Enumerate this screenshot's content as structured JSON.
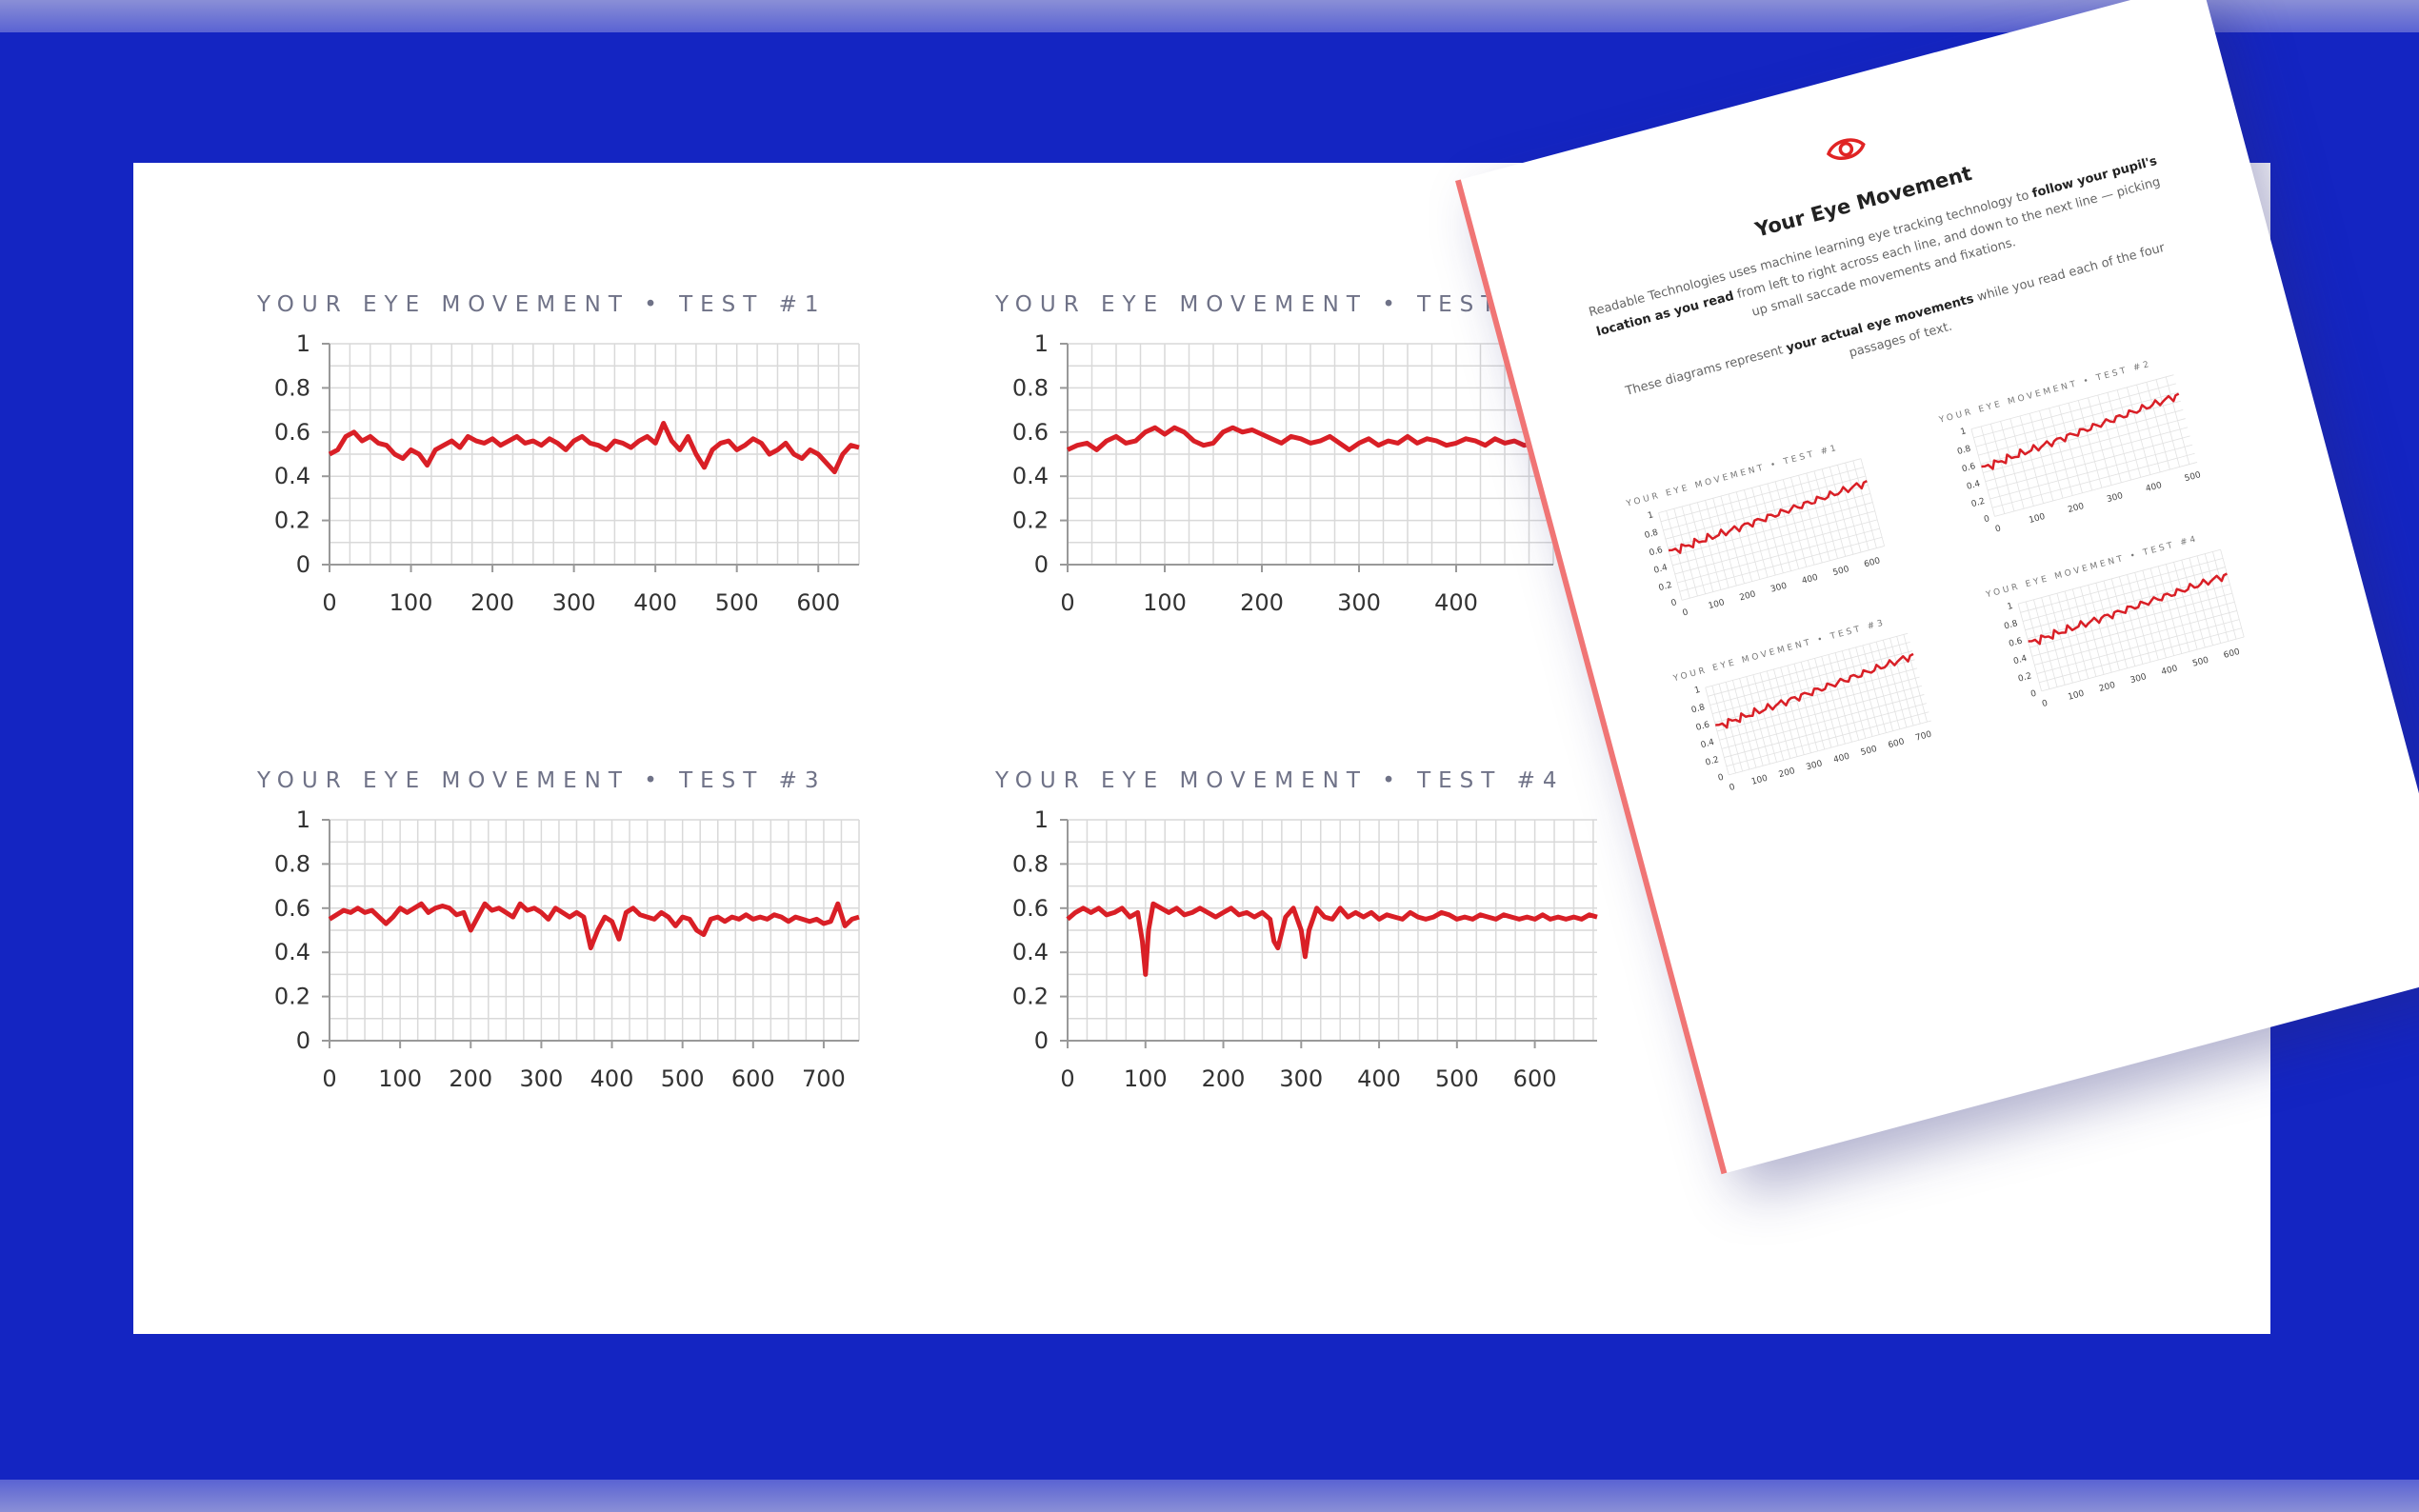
{
  "chart_data": [
    {
      "type": "line",
      "title": "YOUR EYE MOVEMENT • TEST #1",
      "xlim": [
        0,
        650
      ],
      "ylim": [
        0,
        1
      ],
      "xticks": [
        0,
        100,
        200,
        300,
        400,
        500,
        600
      ],
      "yticks": [
        0,
        0.2,
        0.4,
        0.6,
        0.8,
        1
      ],
      "yticklabels": [
        "0",
        "0.2",
        "0.4",
        "0.6",
        "0.8",
        "1"
      ],
      "grid": true,
      "series": [
        {
          "color": "#d91f26",
          "x": [
            0,
            10,
            20,
            30,
            40,
            50,
            60,
            70,
            80,
            90,
            100,
            110,
            120,
            130,
            140,
            150,
            160,
            170,
            180,
            190,
            200,
            210,
            220,
            230,
            240,
            250,
            260,
            270,
            280,
            290,
            300,
            310,
            320,
            330,
            340,
            350,
            360,
            370,
            380,
            390,
            400,
            410,
            420,
            430,
            440,
            450,
            460,
            470,
            480,
            490,
            500,
            510,
            520,
            530,
            540,
            550,
            560,
            570,
            580,
            590,
            600,
            610,
            620,
            630,
            640,
            650
          ],
          "y": [
            0.5,
            0.52,
            0.58,
            0.6,
            0.56,
            0.58,
            0.55,
            0.54,
            0.5,
            0.48,
            0.52,
            0.5,
            0.45,
            0.52,
            0.54,
            0.56,
            0.53,
            0.58,
            0.56,
            0.55,
            0.57,
            0.54,
            0.56,
            0.58,
            0.55,
            0.56,
            0.54,
            0.57,
            0.55,
            0.52,
            0.56,
            0.58,
            0.55,
            0.54,
            0.52,
            0.56,
            0.55,
            0.53,
            0.56,
            0.58,
            0.55,
            0.64,
            0.56,
            0.52,
            0.58,
            0.5,
            0.44,
            0.52,
            0.55,
            0.56,
            0.52,
            0.54,
            0.57,
            0.55,
            0.5,
            0.52,
            0.55,
            0.5,
            0.48,
            0.52,
            0.5,
            0.46,
            0.42,
            0.5,
            0.54,
            0.53
          ]
        }
      ]
    },
    {
      "type": "line",
      "title": "YOUR EYE MOVEMENT • TEST #2",
      "xlim": [
        0,
        500
      ],
      "ylim": [
        0,
        1
      ],
      "xticks": [
        0,
        100,
        200,
        300,
        400
      ],
      "yticks": [
        0,
        0.2,
        0.4,
        0.6,
        0.8,
        1
      ],
      "yticklabels": [
        "0",
        "0.2",
        "0.4",
        "0.6",
        "0.8",
        "1"
      ],
      "grid": true,
      "series": [
        {
          "color": "#d91f26",
          "x": [
            0,
            10,
            20,
            30,
            40,
            50,
            60,
            70,
            80,
            90,
            100,
            110,
            120,
            130,
            140,
            150,
            160,
            170,
            180,
            190,
            200,
            210,
            220,
            230,
            240,
            250,
            260,
            270,
            280,
            290,
            300,
            310,
            320,
            330,
            340,
            350,
            360,
            370,
            380,
            390,
            400,
            410,
            420,
            430,
            440,
            450,
            460,
            470,
            480,
            490,
            500
          ],
          "y": [
            0.52,
            0.54,
            0.55,
            0.52,
            0.56,
            0.58,
            0.55,
            0.56,
            0.6,
            0.62,
            0.59,
            0.62,
            0.6,
            0.56,
            0.54,
            0.55,
            0.6,
            0.62,
            0.6,
            0.61,
            0.59,
            0.57,
            0.55,
            0.58,
            0.57,
            0.55,
            0.56,
            0.58,
            0.55,
            0.52,
            0.55,
            0.57,
            0.54,
            0.56,
            0.55,
            0.58,
            0.55,
            0.57,
            0.56,
            0.54,
            0.55,
            0.57,
            0.56,
            0.54,
            0.57,
            0.55,
            0.56,
            0.54,
            0.55,
            0.57,
            0.56
          ]
        }
      ]
    },
    {
      "type": "line",
      "title": "YOUR EYE MOVEMENT • TEST #3",
      "xlim": [
        0,
        750
      ],
      "ylim": [
        0,
        1
      ],
      "xticks": [
        0,
        100,
        200,
        300,
        400,
        500,
        600,
        700
      ],
      "yticks": [
        0,
        0.2,
        0.4,
        0.6,
        0.8,
        1
      ],
      "yticklabels": [
        "0",
        "0.2",
        "0.4",
        "0.6",
        "0.8",
        "1"
      ],
      "grid": true,
      "series": [
        {
          "color": "#d91f26",
          "x": [
            0,
            10,
            20,
            30,
            40,
            50,
            60,
            70,
            80,
            90,
            100,
            110,
            120,
            130,
            140,
            150,
            160,
            170,
            180,
            190,
            200,
            210,
            220,
            230,
            240,
            250,
            260,
            270,
            280,
            290,
            300,
            310,
            320,
            330,
            340,
            350,
            360,
            370,
            380,
            390,
            400,
            410,
            420,
            430,
            440,
            450,
            460,
            470,
            480,
            490,
            500,
            510,
            520,
            530,
            540,
            550,
            560,
            570,
            580,
            590,
            600,
            610,
            620,
            630,
            640,
            650,
            660,
            670,
            680,
            690,
            700,
            710,
            720,
            730,
            740,
            750
          ],
          "y": [
            0.55,
            0.57,
            0.59,
            0.58,
            0.6,
            0.58,
            0.59,
            0.56,
            0.53,
            0.56,
            0.6,
            0.58,
            0.6,
            0.62,
            0.58,
            0.6,
            0.61,
            0.6,
            0.57,
            0.58,
            0.5,
            0.56,
            0.62,
            0.59,
            0.6,
            0.58,
            0.56,
            0.62,
            0.59,
            0.6,
            0.58,
            0.55,
            0.6,
            0.58,
            0.56,
            0.58,
            0.56,
            0.42,
            0.5,
            0.56,
            0.54,
            0.46,
            0.58,
            0.6,
            0.57,
            0.56,
            0.55,
            0.58,
            0.56,
            0.52,
            0.56,
            0.55,
            0.5,
            0.48,
            0.55,
            0.56,
            0.54,
            0.56,
            0.55,
            0.57,
            0.55,
            0.56,
            0.55,
            0.57,
            0.56,
            0.54,
            0.56,
            0.55,
            0.54,
            0.55,
            0.53,
            0.54,
            0.62,
            0.52,
            0.55,
            0.56
          ]
        }
      ]
    },
    {
      "type": "line",
      "title": "YOUR EYE MOVEMENT • TEST #4",
      "xlim": [
        0,
        680
      ],
      "ylim": [
        0,
        1
      ],
      "xticks": [
        0,
        100,
        200,
        300,
        400,
        500,
        600
      ],
      "yticks": [
        0,
        0.2,
        0.4,
        0.6,
        0.8,
        1
      ],
      "yticklabels": [
        "0",
        "0.2",
        "0.4",
        "0.6",
        "0.8",
        "1"
      ],
      "grid": true,
      "series": [
        {
          "color": "#d91f26",
          "x": [
            0,
            10,
            20,
            30,
            40,
            50,
            60,
            70,
            80,
            90,
            96,
            100,
            104,
            110,
            120,
            130,
            140,
            150,
            160,
            170,
            180,
            190,
            200,
            210,
            220,
            230,
            240,
            250,
            260,
            265,
            270,
            280,
            290,
            300,
            305,
            310,
            320,
            330,
            340,
            350,
            360,
            370,
            380,
            390,
            400,
            410,
            420,
            430,
            440,
            450,
            460,
            470,
            480,
            490,
            500,
            510,
            520,
            530,
            540,
            550,
            560,
            570,
            580,
            590,
            600,
            610,
            620,
            630,
            640,
            650,
            660,
            670,
            680
          ],
          "y": [
            0.55,
            0.58,
            0.6,
            0.58,
            0.6,
            0.57,
            0.58,
            0.6,
            0.56,
            0.58,
            0.45,
            0.3,
            0.5,
            0.62,
            0.6,
            0.58,
            0.6,
            0.57,
            0.58,
            0.6,
            0.58,
            0.56,
            0.58,
            0.6,
            0.57,
            0.58,
            0.56,
            0.58,
            0.55,
            0.45,
            0.42,
            0.56,
            0.6,
            0.5,
            0.38,
            0.5,
            0.6,
            0.56,
            0.55,
            0.6,
            0.56,
            0.58,
            0.56,
            0.58,
            0.55,
            0.57,
            0.56,
            0.55,
            0.58,
            0.56,
            0.55,
            0.56,
            0.58,
            0.57,
            0.55,
            0.56,
            0.55,
            0.57,
            0.56,
            0.55,
            0.57,
            0.56,
            0.55,
            0.56,
            0.55,
            0.57,
            0.55,
            0.56,
            0.55,
            0.56,
            0.55,
            0.57,
            0.56
          ]
        }
      ]
    }
  ],
  "handout": {
    "title": "Your Eye Movement",
    "p1_a": "Readable Technologies uses machine learning eye tracking technology to",
    "p1_bold": "follow your pupil's location as you read",
    "p1_b": "from left to right across each line, and down to the next line — picking up small saccade movements and fixations.",
    "p2_a": "These diagrams represent",
    "p2_bold": "your actual eye movements",
    "p2_b": "while you read each of the four passages of text.",
    "icon": "eye-icon",
    "mini_charts": [
      {
        "title": "YOUR EYE MOVEMENT • TEST #1",
        "xticks": [
          0,
          100,
          200,
          300,
          400,
          500,
          600
        ],
        "xmax": 650
      },
      {
        "title": "YOUR EYE MOVEMENT • TEST #2",
        "xticks": [
          0,
          100,
          200,
          300,
          400,
          500
        ],
        "xmax": 520
      },
      {
        "title": "YOUR EYE MOVEMENT • TEST #3",
        "xticks": [
          0,
          100,
          200,
          300,
          400,
          500,
          600,
          700
        ],
        "xmax": 740
      },
      {
        "title": "YOUR EYE MOVEMENT • TEST #4",
        "xticks": [
          0,
          100,
          200,
          300,
          400,
          500,
          600
        ],
        "xmax": 650
      }
    ],
    "mini_yticks": [
      "0",
      "0.2",
      "0.4",
      "0.6",
      "0.8",
      "1"
    ]
  },
  "colors": {
    "background": "#1425c2",
    "panel": "#ffffff",
    "series": "#d91f26",
    "handout_edge": "#f07575"
  }
}
